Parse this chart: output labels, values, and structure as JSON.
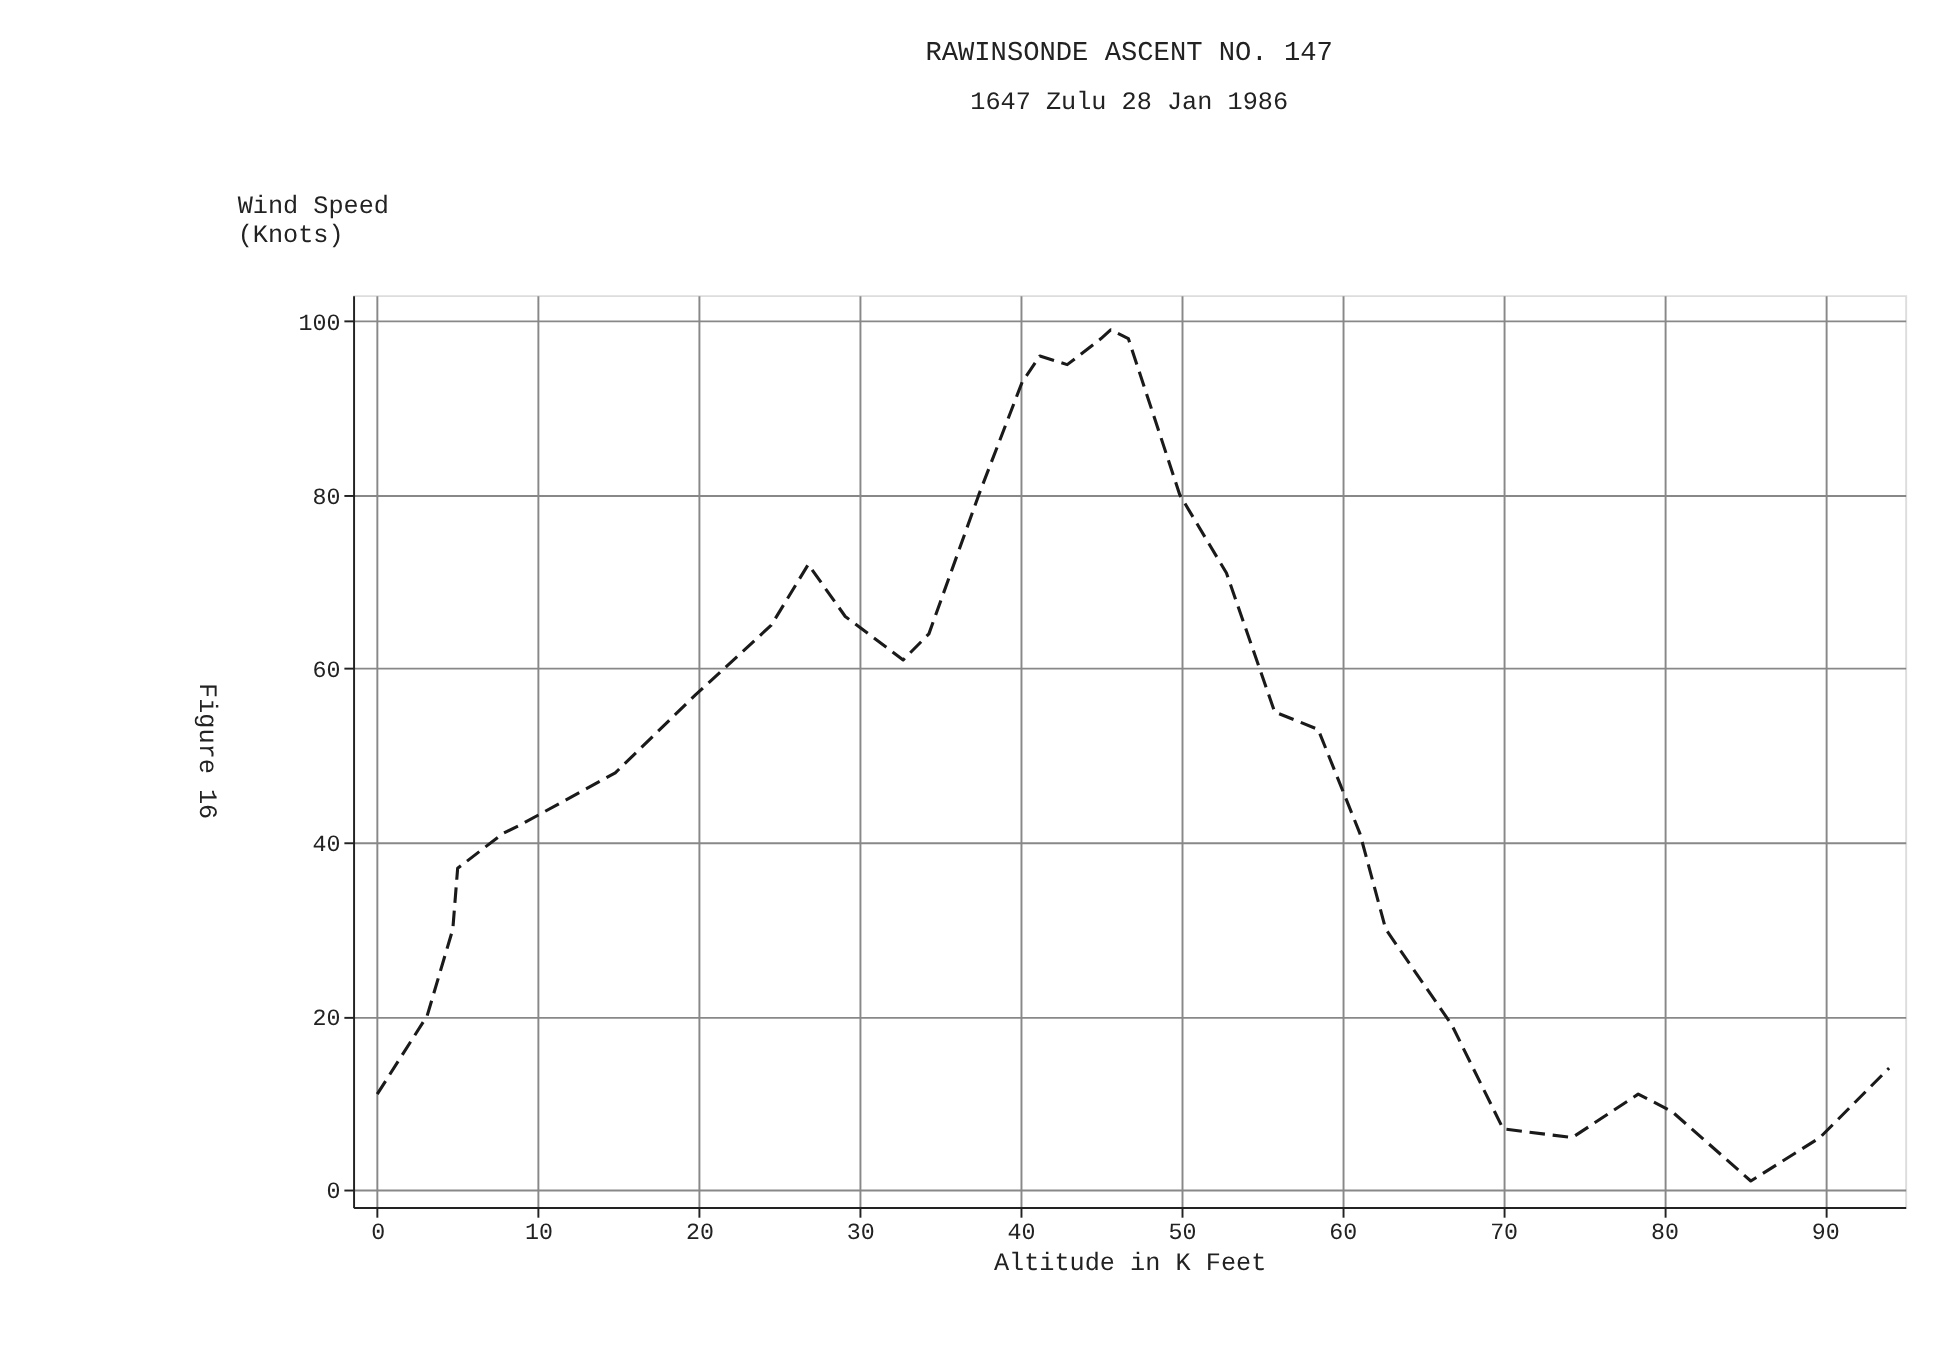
{
  "chart_data": {
    "type": "line",
    "title": "RAWINSONDE ASCENT NO.  147",
    "subtitle": "1647 Zulu  28 Jan 1986",
    "xlabel": "Altitude in K Feet",
    "ylabel": "Wind Speed\n(Knots)",
    "annotations": [
      "Figure 16"
    ],
    "x": [
      0,
      3.1,
      4.7,
      5,
      7.8,
      8.9,
      14.8,
      19.8,
      24.5,
      26.8,
      29.1,
      32.7,
      34.3,
      37.4,
      40.1,
      41.2,
      42.9,
      45,
      45.6,
      46.7,
      49.9,
      52.8,
      55.8,
      58.5,
      61.1,
      62.7,
      66.8,
      70,
      74.3,
      78.4,
      80.5,
      85.4,
      89.7,
      94
    ],
    "series": [
      {
        "color": "#1a1a1a",
        "values": [
          11,
          20,
          30,
          37,
          41,
          42,
          48,
          57,
          65,
          72,
          66,
          61,
          64,
          80,
          93,
          96,
          95,
          98,
          99,
          98,
          80,
          71,
          55,
          53,
          41,
          30,
          19,
          7,
          6,
          11,
          9,
          1,
          6,
          14
        ]
      }
    ],
    "xlim": [
      -1.5,
      95
    ],
    "ylim": [
      -2,
      103
    ],
    "xticks": [
      0,
      10,
      20,
      30,
      40,
      50,
      60,
      70,
      80,
      90
    ],
    "yticks": [
      0,
      20,
      40,
      60,
      80,
      100
    ],
    "grid": true,
    "marker": "none",
    "line_style": "dashed"
  }
}
